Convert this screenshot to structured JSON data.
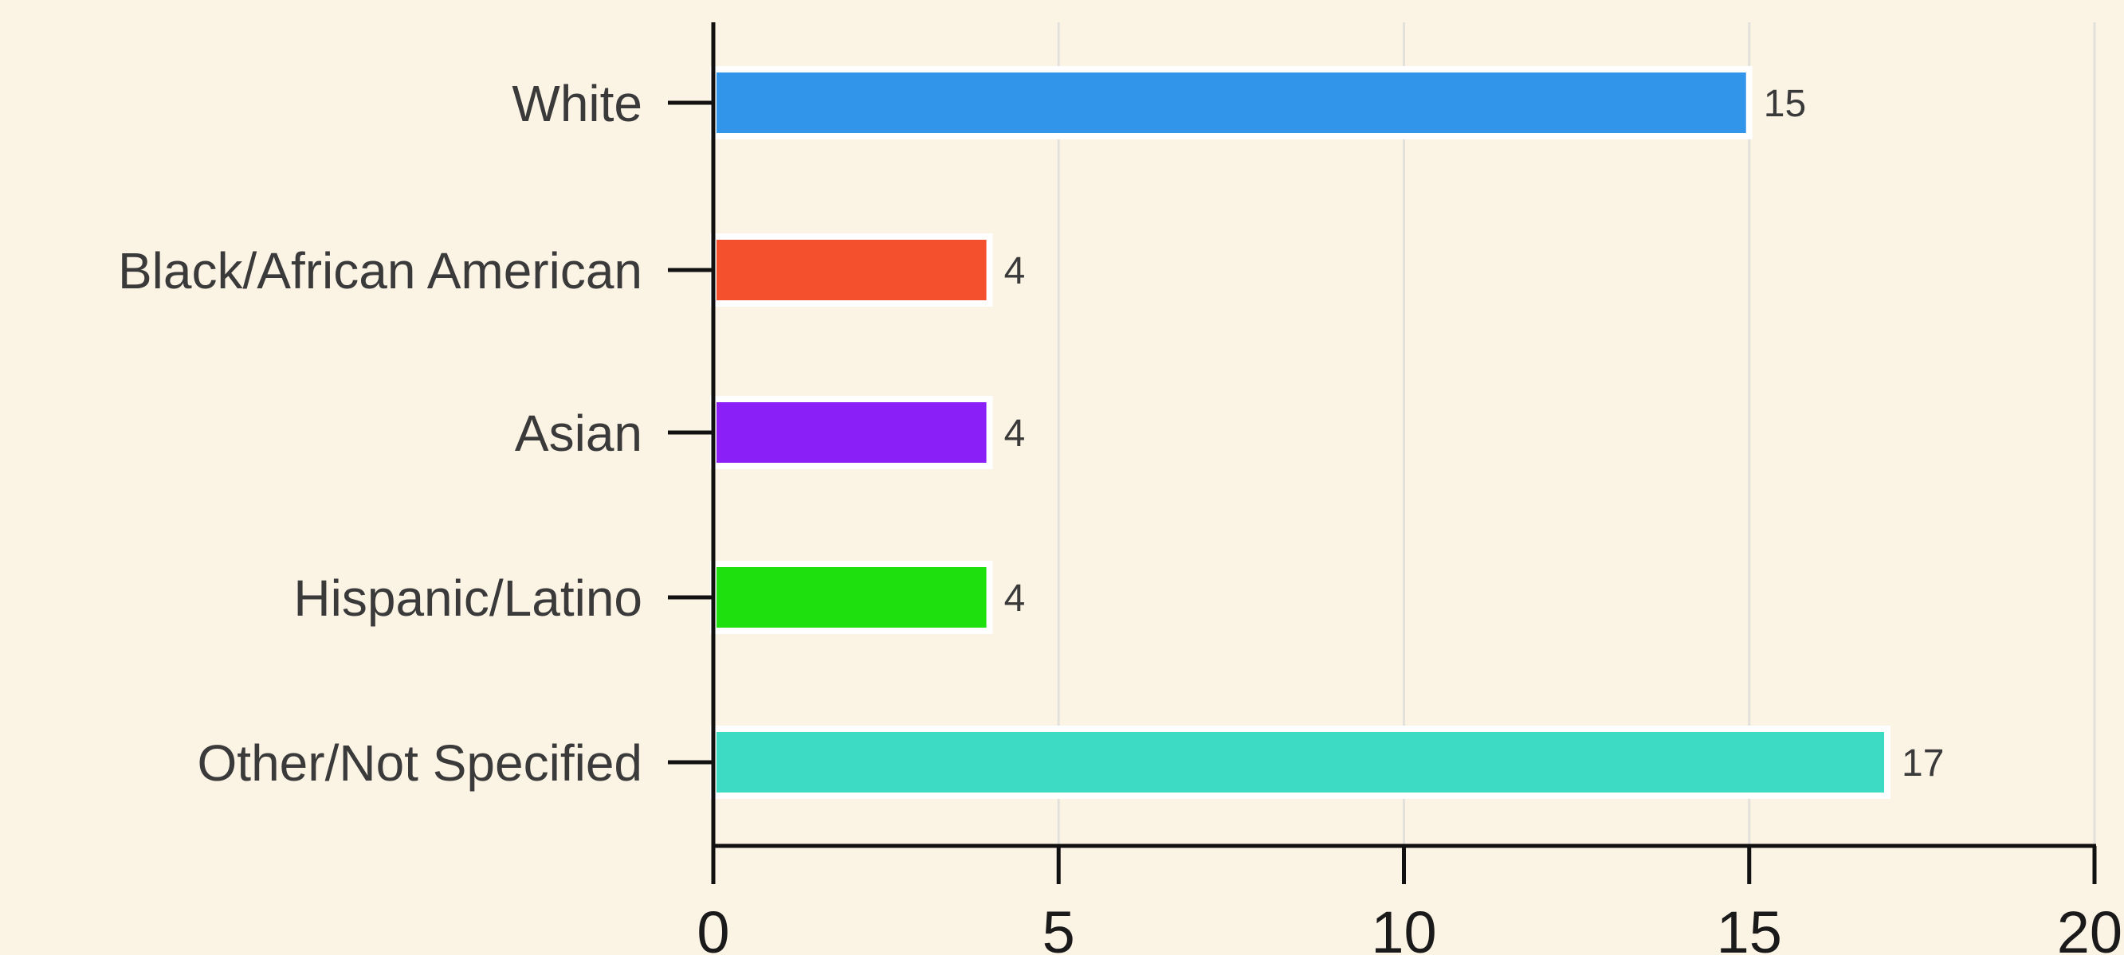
{
  "chart_data": {
    "type": "bar",
    "orientation": "horizontal",
    "categories": [
      "White",
      "Black/African American",
      "Asian",
      "Hispanic/Latino",
      "Other/Not Specified"
    ],
    "values": [
      15,
      4,
      4,
      4,
      17
    ],
    "colors": [
      "#3195ea",
      "#f5502d",
      "#8a1ff8",
      "#1de00e",
      "#3ddbc4"
    ],
    "data_labels": [
      "15",
      "4",
      "4",
      "4",
      "17"
    ],
    "xlim": [
      0,
      20
    ],
    "x_ticks": [
      0,
      5,
      10,
      15,
      20
    ],
    "x_tick_labels": [
      "0",
      "5",
      "10",
      "15",
      "20"
    ],
    "grid": "vertical",
    "legend": "none",
    "title": "",
    "xlabel": "",
    "ylabel": ""
  },
  "style": {
    "background": "#fbf3e4",
    "grid_color": "#e3e1dc",
    "axis_color": "#111111",
    "bar_outline": "#ffffff"
  }
}
